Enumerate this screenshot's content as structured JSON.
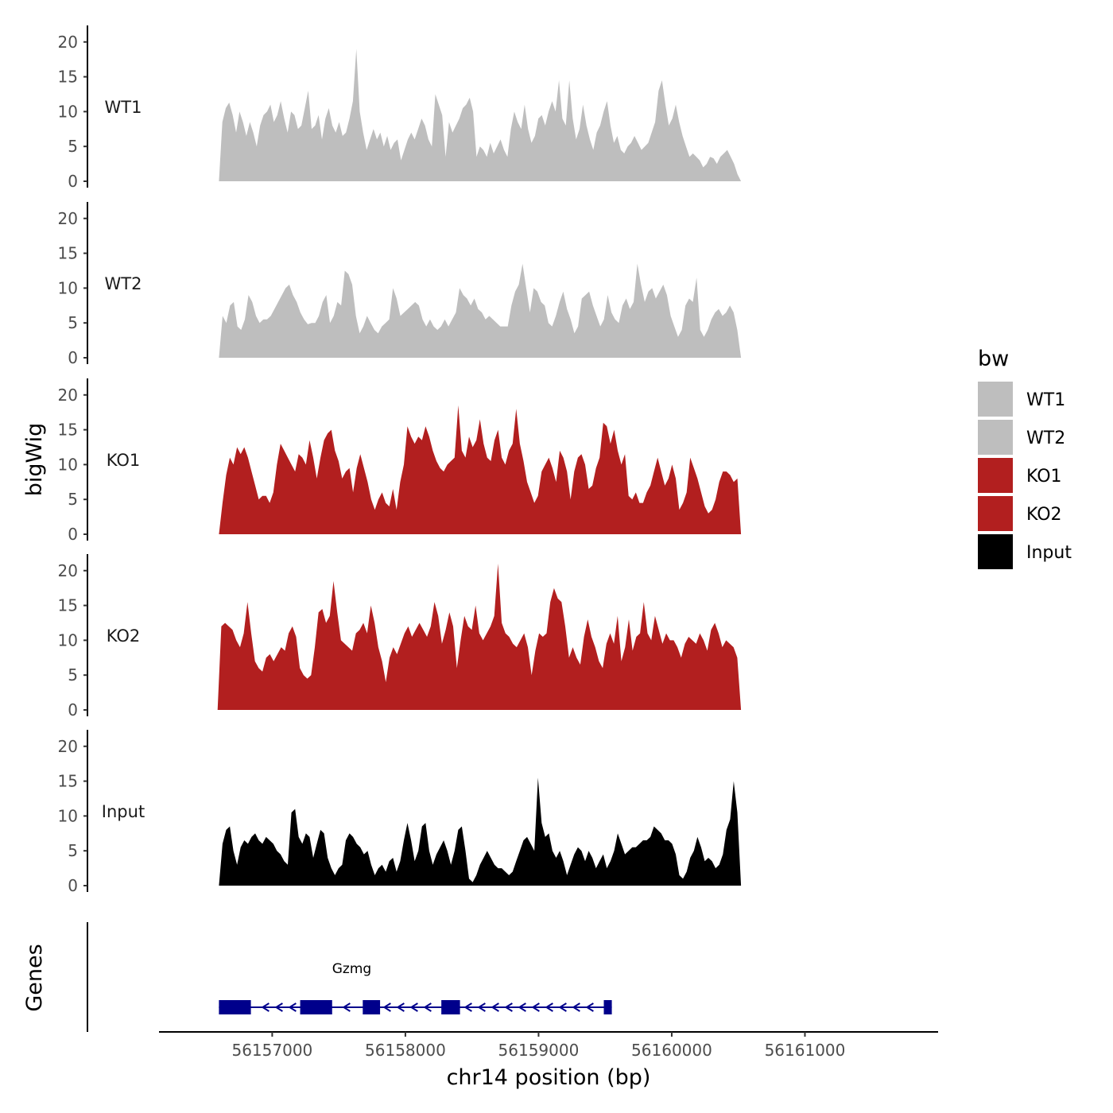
{
  "chart_data": {
    "type": "area",
    "title": "",
    "xlabel": "chr14 position (bp)",
    "ylabel": "bigWig",
    "genes_label": "Genes",
    "xlim": [
      56156150,
      56162000
    ],
    "ylim": [
      0,
      21
    ],
    "x_ticks": [
      56157000,
      56158000,
      56159000,
      56160000,
      56161000
    ],
    "x_tick_labels": [
      "56157000",
      "56158000",
      "56159000",
      "56160000",
      "56161000"
    ],
    "y_ticks": [
      0,
      5,
      10,
      15,
      20
    ],
    "y_tick_labels": [
      "0",
      "5",
      "10",
      "15",
      "20"
    ],
    "legend": {
      "title": "bw",
      "position": "right",
      "entries": [
        {
          "label": "WT1",
          "color": "#bebebe"
        },
        {
          "label": "WT2",
          "color": "#bebebe"
        },
        {
          "label": "KO1",
          "color": "#b21f1f"
        },
        {
          "label": "KO2",
          "color": "#b21f1f"
        },
        {
          "label": "Input",
          "color": "#000000"
        }
      ]
    },
    "series": [
      {
        "name": "WT1",
        "color": "#bebebe",
        "x_start": 56156600,
        "x_end": 56160520,
        "values": [
          0,
          8.5,
          10.5,
          11.3,
          9.5,
          7,
          10,
          8.5,
          6.5,
          8.5,
          7,
          5,
          8,
          9.5,
          10,
          11,
          8.5,
          9.5,
          11.5,
          9,
          7,
          10,
          9.5,
          7.5,
          8,
          10.5,
          13,
          7.5,
          8,
          9.5,
          6,
          9,
          10.5,
          8,
          7,
          8.5,
          6.5,
          7,
          9,
          11.5,
          19,
          10,
          7,
          4.5,
          6,
          7.5,
          6,
          7,
          5,
          6.5,
          4.5,
          5.5,
          6,
          3,
          4.5,
          6,
          7,
          6,
          7.5,
          9,
          8,
          6,
          5,
          12.5,
          11,
          9.5,
          3.5,
          8.5,
          7,
          8,
          9,
          10.5,
          11,
          12,
          10,
          3.5,
          5,
          4.5,
          3.5,
          5.5,
          4,
          5,
          6,
          4.5,
          3.5,
          7.5,
          10,
          8.5,
          7.5,
          11,
          7.5,
          5.5,
          6.5,
          9,
          9.5,
          8,
          10,
          11.5,
          10,
          14.5,
          9,
          8,
          14.5,
          9,
          6,
          7.5,
          11,
          8,
          6,
          4.5,
          7,
          8,
          10,
          11.5,
          8,
          5.5,
          6.5,
          4.5,
          4,
          5,
          5.5,
          6.5,
          5.5,
          4.5,
          5,
          5.5,
          7,
          8.5,
          13,
          14.5,
          11,
          8,
          9,
          11,
          8.5,
          6.5,
          5,
          3.5,
          4,
          3.5,
          3,
          2,
          2.5,
          3.5,
          3.3,
          2.5,
          3.5,
          4,
          4.5,
          3.5,
          2.5,
          1,
          0
        ]
      },
      {
        "name": "WT2",
        "color": "#bebebe",
        "x_start": 56156600,
        "x_end": 56160520,
        "values": [
          0,
          6,
          5,
          7.5,
          8,
          4.5,
          4,
          5.5,
          9,
          8,
          6,
          5,
          5.5,
          5.5,
          6,
          7,
          8,
          9,
          10,
          10.5,
          9,
          8,
          6.5,
          5.5,
          4.8,
          5,
          5,
          6,
          8,
          9,
          5,
          6,
          8,
          7.5,
          12.5,
          12,
          10.5,
          6,
          3.5,
          4.5,
          6,
          5,
          4,
          3.5,
          4.5,
          5,
          5.5,
          10,
          8.5,
          6,
          6.5,
          7,
          7.5,
          8,
          7.5,
          5.5,
          4.5,
          5.5,
          4.5,
          4,
          4.5,
          5.5,
          4.5,
          5.5,
          6.5,
          10,
          9,
          8.5,
          7.5,
          8.5,
          7,
          6.5,
          5.5,
          6,
          5.5,
          5,
          4.5,
          4.5,
          4.5,
          7.5,
          9.5,
          10.5,
          13.5,
          10,
          6.5,
          10,
          9.5,
          8,
          7.5,
          5,
          4.5,
          6,
          8,
          9.5,
          7,
          5.5,
          3.5,
          4.5,
          8.5,
          9,
          9.5,
          7.5,
          6,
          4.5,
          5.5,
          9,
          6.5,
          5.5,
          5,
          7.5,
          8.5,
          7,
          8,
          13.5,
          10.5,
          8,
          9.5,
          10,
          8.5,
          9.5,
          10.5,
          9,
          6,
          4.5,
          3,
          4,
          7.5,
          8.5,
          8,
          11.5,
          4,
          3,
          4,
          5.5,
          6.5,
          7,
          6,
          6.5,
          7.5,
          6.5,
          4,
          0
        ]
      },
      {
        "name": "KO1",
        "color": "#b21f1f",
        "x_start": 56156600,
        "x_end": 56160520,
        "values": [
          0,
          4.5,
          8.5,
          11,
          10,
          12.5,
          11.5,
          12.5,
          11,
          9,
          7,
          5,
          5.5,
          5.5,
          4.5,
          6,
          10,
          13,
          12,
          11,
          10,
          9,
          11.5,
          11,
          10,
          13.5,
          11,
          8,
          11,
          13.5,
          14.5,
          15,
          12,
          10.5,
          8,
          9,
          9.5,
          6,
          9.5,
          11.5,
          9.5,
          7.5,
          5,
          3.5,
          5,
          6,
          4.5,
          4,
          6.5,
          3.5,
          7.5,
          10,
          15.5,
          14,
          13,
          14,
          13.5,
          15.5,
          14,
          12,
          10.5,
          9.5,
          9,
          10,
          10.5,
          11,
          18.5,
          12,
          11,
          14,
          12.5,
          13.5,
          16.5,
          13,
          11,
          10.5,
          13.5,
          15,
          11,
          10,
          12,
          13,
          18,
          13,
          10.5,
          7.5,
          6,
          4.5,
          5.5,
          9,
          10,
          11,
          9.5,
          7.5,
          12,
          11,
          9,
          5,
          9,
          11,
          11.5,
          10,
          6.5,
          7,
          9.5,
          11,
          16,
          15.5,
          13,
          15,
          12,
          10,
          11.5,
          5.5,
          5,
          6,
          4.5,
          4.5,
          6,
          7,
          9,
          11,
          9,
          7,
          8,
          10,
          8,
          3.5,
          4.5,
          6,
          11,
          9.5,
          8,
          6,
          4,
          3,
          3.5,
          5,
          7.5,
          9,
          9,
          8.5,
          7.5,
          8,
          0
        ]
      },
      {
        "name": "KO2",
        "color": "#b21f1f",
        "x_start": 56156590,
        "x_end": 56160520,
        "values": [
          0,
          12,
          12.5,
          12,
          11.5,
          10,
          9,
          11,
          15.5,
          11,
          7,
          6,
          5.5,
          7.5,
          8,
          7,
          8,
          9,
          8.5,
          11,
          12,
          10.5,
          6,
          5,
          4.5,
          5,
          9,
          14,
          14.5,
          12.5,
          13.5,
          18.5,
          14,
          10,
          9.5,
          9,
          8.5,
          11,
          11.5,
          12.5,
          11,
          15,
          12.5,
          9,
          7,
          4,
          7.5,
          9,
          8,
          9.5,
          11,
          12,
          10.5,
          11.5,
          12.5,
          11.5,
          10.5,
          12,
          15.5,
          13.5,
          9.5,
          11.5,
          14,
          12,
          6,
          10,
          13.5,
          12,
          11.5,
          15,
          11,
          10,
          11,
          12,
          13.5,
          21,
          12.5,
          11,
          10.5,
          9.5,
          9,
          10,
          11,
          9,
          5,
          8.5,
          11,
          10.5,
          11,
          15.5,
          17.5,
          16,
          15.5,
          12,
          7.5,
          9,
          7.5,
          6.5,
          10.5,
          13,
          10.5,
          9,
          7,
          6,
          9.5,
          11,
          9.5,
          13.5,
          7,
          9,
          13,
          8.5,
          10.5,
          11,
          15.5,
          11,
          10,
          13.5,
          11.5,
          9.5,
          11,
          10,
          10,
          9,
          7.5,
          9.5,
          10.5,
          10,
          9.5,
          11,
          10,
          8.5,
          11.5,
          12.5,
          11,
          9,
          10,
          9.5,
          9,
          7.5,
          0
        ]
      },
      {
        "name": "Input",
        "color": "#000000",
        "x_start": 56156600,
        "x_end": 56160520,
        "values": [
          0,
          6,
          8,
          8.5,
          5,
          3,
          5.5,
          6.5,
          6,
          7,
          7.5,
          6.5,
          6,
          7,
          6.5,
          6,
          5,
          4.5,
          3.5,
          3,
          10.5,
          11,
          7,
          6,
          7.5,
          7,
          4,
          6,
          8,
          7.5,
          4,
          2.5,
          1.5,
          2.5,
          3,
          6.5,
          7.5,
          7,
          6,
          5.5,
          4.5,
          5,
          3,
          1.5,
          2.5,
          3,
          2,
          3.5,
          4,
          2,
          3.5,
          6.5,
          9,
          6.5,
          3.5,
          5,
          8.5,
          9,
          5,
          3,
          4.5,
          5.5,
          6.5,
          5,
          3,
          5,
          8,
          8.5,
          5,
          1,
          0.5,
          1.5,
          3,
          4,
          5,
          4,
          3,
          2.5,
          2.5,
          2,
          1.5,
          2,
          3.5,
          5,
          6.5,
          7,
          6,
          5,
          15.5,
          9,
          7,
          7.5,
          5,
          4,
          5,
          3.5,
          1.5,
          3,
          4.5,
          5.5,
          5,
          3.5,
          5,
          4,
          2.5,
          3.5,
          4.5,
          2.5,
          3.5,
          5,
          7.5,
          6,
          4.5,
          5,
          5.5,
          5.5,
          6,
          6.5,
          6.5,
          7,
          8.5,
          8,
          7.5,
          6.5,
          6.5,
          6,
          4.5,
          1.5,
          1,
          2,
          4,
          5,
          7,
          5.5,
          3.5,
          4,
          3.5,
          2.5,
          3,
          4.5,
          8,
          9.5,
          15,
          10.5,
          0
        ]
      }
    ],
    "genes": [
      {
        "name": "Gzmg",
        "strand": "-",
        "start": 56156600,
        "end": 56159550,
        "color": "#00008b",
        "exons": [
          [
            56156600,
            56156840
          ],
          [
            56157210,
            56157450
          ],
          [
            56157680,
            56157810
          ],
          [
            56158270,
            56158410
          ],
          [
            56159490,
            56159550
          ]
        ]
      }
    ]
  }
}
